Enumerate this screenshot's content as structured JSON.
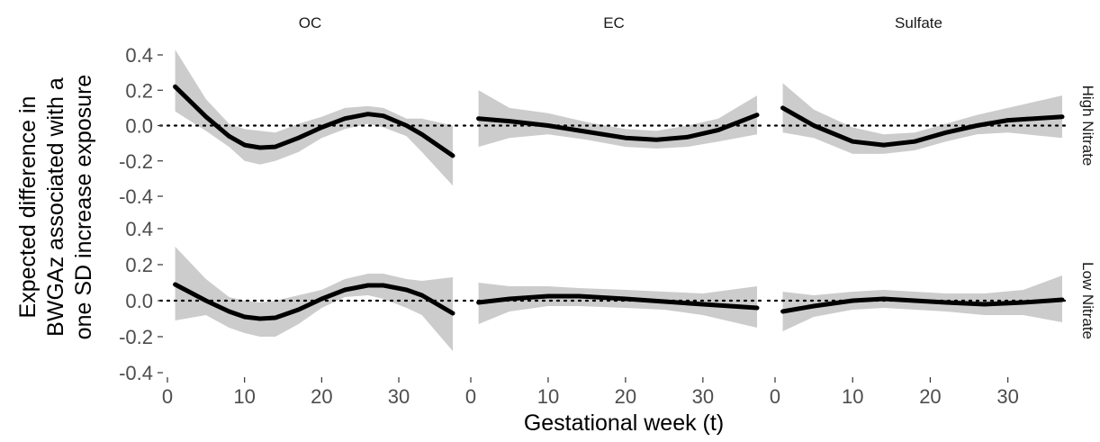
{
  "chart_data": {
    "type": "line",
    "xlabel": "Gestational week (t)",
    "ylabel": [
      "Expected difference in",
      "BWGAz associated with a",
      "one SD increase exposure"
    ],
    "xlim": [
      0,
      37
    ],
    "ylim": [
      -0.4,
      0.4
    ],
    "x_ticks": [
      0,
      10,
      20,
      30
    ],
    "y_ticks": [
      -0.4,
      -0.2,
      0.0,
      0.2,
      0.4
    ],
    "y_tick_labels": [
      "-0.4",
      "-0.2",
      "0.0",
      "0.2",
      "0.4"
    ],
    "columns": [
      "OC",
      "EC",
      "Sulfate"
    ],
    "rows": [
      "High Nitrate",
      "Low Nitrate"
    ],
    "reference_line": 0,
    "line_color": "#000000",
    "band_color": "#cccccc",
    "panels": [
      {
        "row": "High Nitrate",
        "column": "OC",
        "x": [
          1,
          5,
          8,
          10,
          12,
          14,
          17,
          20,
          23,
          26,
          28,
          31,
          33,
          37
        ],
        "y": [
          0.22,
          0.05,
          -0.06,
          -0.11,
          -0.125,
          -0.12,
          -0.07,
          -0.01,
          0.04,
          0.065,
          0.055,
          0.0,
          -0.05,
          -0.17
        ],
        "lower": [
          0.08,
          -0.03,
          -0.12,
          -0.2,
          -0.22,
          -0.2,
          -0.15,
          -0.07,
          -0.02,
          0.01,
          -0.01,
          -0.06,
          -0.15,
          -0.34
        ],
        "upper": [
          0.43,
          0.15,
          0.01,
          -0.02,
          -0.03,
          -0.04,
          0.01,
          0.05,
          0.1,
          0.11,
          0.1,
          0.04,
          0.04,
          0.0
        ]
      },
      {
        "row": "High Nitrate",
        "column": "EC",
        "x": [
          1,
          5,
          10,
          15,
          20,
          24,
          28,
          32,
          37
        ],
        "y": [
          0.04,
          0.025,
          0.0,
          -0.035,
          -0.07,
          -0.08,
          -0.065,
          -0.025,
          0.06
        ],
        "lower": [
          -0.12,
          -0.07,
          -0.05,
          -0.08,
          -0.12,
          -0.13,
          -0.12,
          -0.09,
          -0.05
        ],
        "upper": [
          0.2,
          0.1,
          0.07,
          0.02,
          -0.02,
          -0.03,
          0.0,
          0.04,
          0.17
        ]
      },
      {
        "row": "High Nitrate",
        "column": "Sulfate",
        "x": [
          1,
          5,
          10,
          14,
          18,
          22,
          26,
          30,
          37
        ],
        "y": [
          0.1,
          0.0,
          -0.09,
          -0.11,
          -0.09,
          -0.04,
          0.0,
          0.03,
          0.05
        ],
        "lower": [
          -0.04,
          -0.07,
          -0.16,
          -0.16,
          -0.14,
          -0.09,
          -0.05,
          -0.04,
          -0.07
        ],
        "upper": [
          0.24,
          0.09,
          -0.01,
          -0.05,
          -0.04,
          0.01,
          0.06,
          0.1,
          0.17
        ]
      },
      {
        "row": "Low Nitrate",
        "column": "OC",
        "x": [
          1,
          5,
          8,
          10,
          12,
          14,
          17,
          20,
          23,
          26,
          28,
          31,
          33,
          37
        ],
        "y": [
          0.09,
          0.0,
          -0.06,
          -0.09,
          -0.1,
          -0.095,
          -0.05,
          0.01,
          0.06,
          0.085,
          0.085,
          0.06,
          0.03,
          -0.07
        ],
        "lower": [
          -0.11,
          -0.08,
          -0.15,
          -0.18,
          -0.2,
          -0.2,
          -0.13,
          -0.04,
          0.02,
          0.03,
          0.01,
          -0.04,
          -0.08,
          -0.28
        ],
        "upper": [
          0.3,
          0.12,
          0.02,
          0.0,
          -0.01,
          0.0,
          0.03,
          0.06,
          0.12,
          0.15,
          0.15,
          0.12,
          0.11,
          0.13
        ]
      },
      {
        "row": "Low Nitrate",
        "column": "EC",
        "x": [
          1,
          5,
          10,
          14,
          20,
          25,
          30,
          37
        ],
        "y": [
          -0.01,
          0.01,
          0.025,
          0.025,
          0.01,
          -0.005,
          -0.02,
          -0.04
        ],
        "lower": [
          -0.13,
          -0.06,
          -0.03,
          -0.03,
          -0.04,
          -0.05,
          -0.08,
          -0.15
        ],
        "upper": [
          0.1,
          0.08,
          0.08,
          0.07,
          0.06,
          0.05,
          0.04,
          0.08
        ]
      },
      {
        "row": "Low Nitrate",
        "column": "Sulfate",
        "x": [
          1,
          5,
          10,
          14,
          18,
          22,
          27,
          32,
          37
        ],
        "y": [
          -0.06,
          -0.03,
          0.0,
          0.01,
          0.0,
          -0.01,
          -0.02,
          -0.01,
          0.005
        ],
        "lower": [
          -0.17,
          -0.09,
          -0.05,
          -0.04,
          -0.05,
          -0.06,
          -0.08,
          -0.08,
          -0.12
        ],
        "upper": [
          0.05,
          0.03,
          0.05,
          0.06,
          0.05,
          0.04,
          0.04,
          0.06,
          0.14
        ]
      }
    ]
  }
}
